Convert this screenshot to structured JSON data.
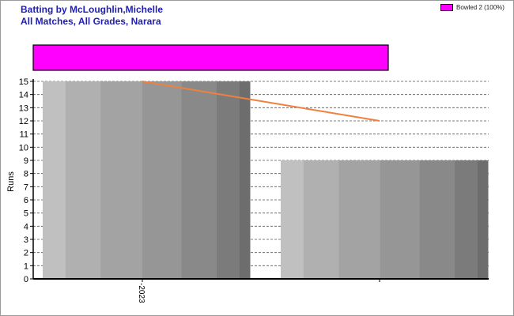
{
  "title_line1": "Batting by McLoughlin,Michelle",
  "title_line2": "All Matches, All Grades, Narara",
  "legend": {
    "label": "Bowled 2 (100%)",
    "color": "#ff00ff"
  },
  "chart_data": {
    "type": "bar",
    "ylabel": "Runs",
    "ylim": [
      0,
      15
    ],
    "yticks": [
      0,
      1,
      2,
      3,
      4,
      5,
      6,
      7,
      8,
      9,
      10,
      11,
      12,
      13,
      14,
      15
    ],
    "xtick_label": "2023",
    "grid": true,
    "bars": [
      {
        "value": 15
      },
      {
        "value": 9
      }
    ],
    "trend_line": {
      "start": 15,
      "end": 12,
      "color": "#f08040"
    },
    "dismissal_bar": {
      "label": "Bowled",
      "count": 2,
      "percent": 100,
      "color": "#ff00ff"
    }
  }
}
